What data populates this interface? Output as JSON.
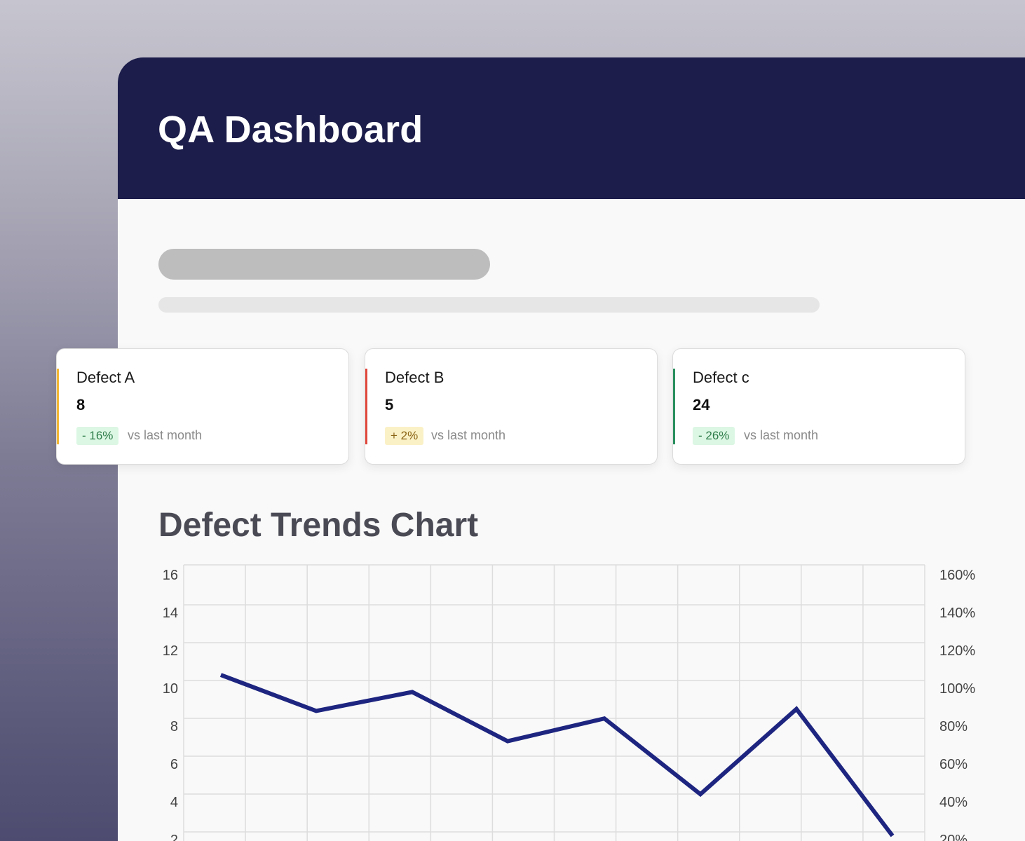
{
  "header": {
    "title": "QA Dashboard"
  },
  "cards": [
    {
      "title": "Defect A",
      "value": "8",
      "change": "- 16%",
      "trend": "down",
      "note": "vs last month",
      "accent": "#f2b632"
    },
    {
      "title": "Defect B",
      "value": "5",
      "change": "+ 2%",
      "trend": "up",
      "note": "vs last month",
      "accent": "#e0463b"
    },
    {
      "title": "Defect c",
      "value": "24",
      "change": "- 26%",
      "trend": "down",
      "note": "vs last month",
      "accent": "#2a8f5e"
    }
  ],
  "chart": {
    "title": "Defect Trends Chart"
  },
  "chart_data": {
    "type": "line",
    "title": "Defect Trends Chart",
    "left_axis": {
      "ticks": [
        "16",
        "14",
        "12",
        "10",
        "8",
        "6",
        "4",
        "2"
      ],
      "min": 0,
      "max": 16
    },
    "right_axis": {
      "ticks": [
        "160%",
        "140%",
        "120%",
        "100%",
        "80%",
        "60%",
        "40%",
        "20%"
      ],
      "min": 0,
      "max": 160
    },
    "grid": true,
    "series": [
      {
        "color": "#1d2580",
        "values": [
          10.7,
          8.8,
          9.8,
          7.2,
          8.4,
          4.4,
          8.9,
          2.2
        ]
      }
    ]
  }
}
